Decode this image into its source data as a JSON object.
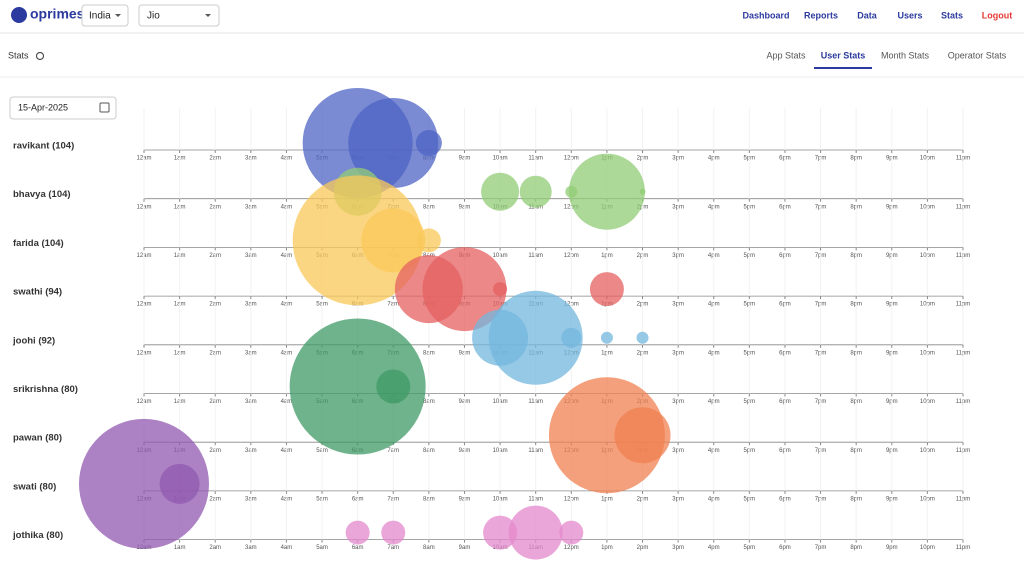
{
  "header": {
    "logo": "oprimes",
    "country": "India",
    "operator": "Jio",
    "nav": [
      "Dashboard",
      "Reports",
      "Data",
      "Users",
      "Stats"
    ],
    "logout": "Logout"
  },
  "toolbar": {
    "title": "Stats",
    "tabs": [
      "App Stats",
      "User Stats",
      "Month Stats",
      "Operator Stats"
    ],
    "active_tab": 1
  },
  "date": "15-Apr-2025",
  "xticks": [
    {
      "value": 0,
      "label": "12am"
    },
    {
      "value": 1,
      "label": "1am"
    },
    {
      "value": 2,
      "label": "2am"
    },
    {
      "value": 3,
      "label": "3am"
    },
    {
      "value": 4,
      "label": "4am"
    },
    {
      "value": 5,
      "label": "5am"
    },
    {
      "value": 6,
      "label": "6am"
    },
    {
      "value": 7,
      "label": "7am"
    },
    {
      "value": 8,
      "label": "8am"
    },
    {
      "value": 9,
      "label": "9am"
    },
    {
      "value": 10,
      "label": "10am"
    },
    {
      "value": 11,
      "label": "11am"
    },
    {
      "value": 12,
      "label": "12pm"
    },
    {
      "value": 13,
      "label": "1pm"
    },
    {
      "value": 14,
      "label": "2pm"
    },
    {
      "value": 15,
      "label": "3pm"
    },
    {
      "value": 16,
      "label": "4pm"
    },
    {
      "value": 17,
      "label": "5pm"
    },
    {
      "value": 18,
      "label": "6pm"
    },
    {
      "value": 19,
      "label": "7pm"
    },
    {
      "value": 20,
      "label": "8pm"
    },
    {
      "value": 21,
      "label": "9pm"
    },
    {
      "value": 22,
      "label": "10pm"
    },
    {
      "value": 23,
      "label": "11pm"
    }
  ],
  "xlim": [
    0,
    23
  ],
  "rows": [
    {
      "label": "ravikant (104)",
      "color": "#4d63c4",
      "x": [
        6,
        7,
        8
      ],
      "size": [
        55,
        45,
        13
      ]
    },
    {
      "label": "bhavya (104)",
      "color": "#91cc75",
      "x": [
        6,
        10,
        11,
        12,
        13,
        14
      ],
      "size": [
        24,
        19,
        16,
        6,
        38,
        3
      ]
    },
    {
      "label": "farida (104)",
      "color": "#fac858",
      "x": [
        6,
        7,
        8
      ],
      "size": [
        65,
        32,
        12
      ]
    },
    {
      "label": "swathi (94)",
      "color": "#e66060",
      "x": [
        8,
        9,
        10,
        13
      ],
      "size": [
        34,
        42,
        7,
        17
      ]
    },
    {
      "label": "joohi (92)",
      "color": "#73b7de",
      "x": [
        10,
        11,
        12,
        13,
        14
      ],
      "size": [
        28,
        47,
        10,
        6,
        6
      ]
    },
    {
      "label": "srikrishna (80)",
      "color": "#3f9a66",
      "x": [
        6,
        7
      ],
      "size": [
        68,
        17
      ]
    },
    {
      "label": "pawan (80)",
      "color": "#f08050",
      "x": [
        13,
        14
      ],
      "size": [
        58,
        28
      ]
    },
    {
      "label": "swati (80)",
      "color": "#9058b0",
      "x": [
        0,
        1
      ],
      "size": [
        65,
        20
      ]
    },
    {
      "label": "jothika (80)",
      "color": "#e488cc",
      "x": [
        6,
        7,
        10,
        11,
        12
      ],
      "size": [
        12,
        12,
        17,
        27,
        12
      ]
    }
  ]
}
